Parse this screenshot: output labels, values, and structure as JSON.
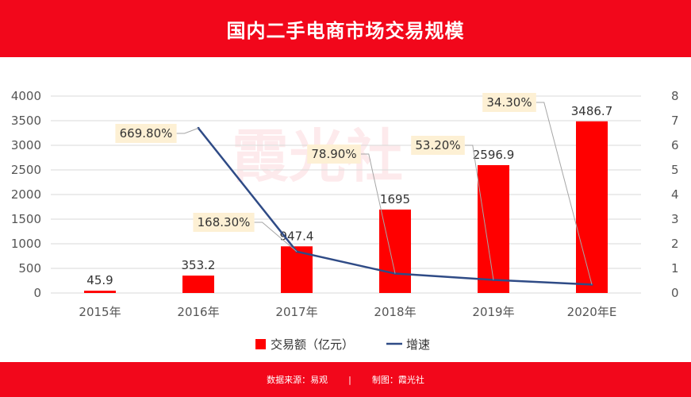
{
  "header": {
    "title": "国内二手电商市场交易规模"
  },
  "footer": {
    "source": "数据来源：易观",
    "separator": "|",
    "producer": "制图：霞光社"
  },
  "watermark": "霞光社",
  "colors": {
    "bar": "#ff0000",
    "line": "#2f4b86",
    "brand": "#f2071b",
    "label_bg": "#fdf0d4"
  },
  "chart_data": {
    "type": "bar",
    "categories": [
      "2015年",
      "2016年",
      "2017年",
      "2018年",
      "2019年",
      "2020年E"
    ],
    "series": [
      {
        "name": "交易额（亿元）",
        "type": "bar",
        "axis": "left",
        "values": [
          45.9,
          353.2,
          947.4,
          1695,
          2596.9,
          3486.7
        ],
        "labels": [
          "45.9",
          "353.2",
          "947.4",
          "1695",
          "2596.9",
          "3486.7"
        ]
      },
      {
        "name": "增速",
        "type": "line",
        "axis": "right",
        "values": [
          null,
          6.698,
          1.683,
          0.789,
          0.532,
          0.343
        ],
        "labels": [
          null,
          "669.80%",
          "168.30%",
          "78.90%",
          "53.20%",
          "34.30%"
        ]
      }
    ],
    "y_left": {
      "ylim": [
        0,
        4000
      ],
      "ticks": [
        "0",
        "500",
        "1000",
        "1500",
        "2000",
        "2500",
        "3000",
        "3500",
        "4000"
      ]
    },
    "y_right": {
      "ylim": [
        0,
        8
      ],
      "ticks": [
        "0",
        "1",
        "2",
        "3",
        "4",
        "5",
        "6",
        "7",
        "8"
      ]
    },
    "grid": true,
    "legend": "bottom"
  }
}
